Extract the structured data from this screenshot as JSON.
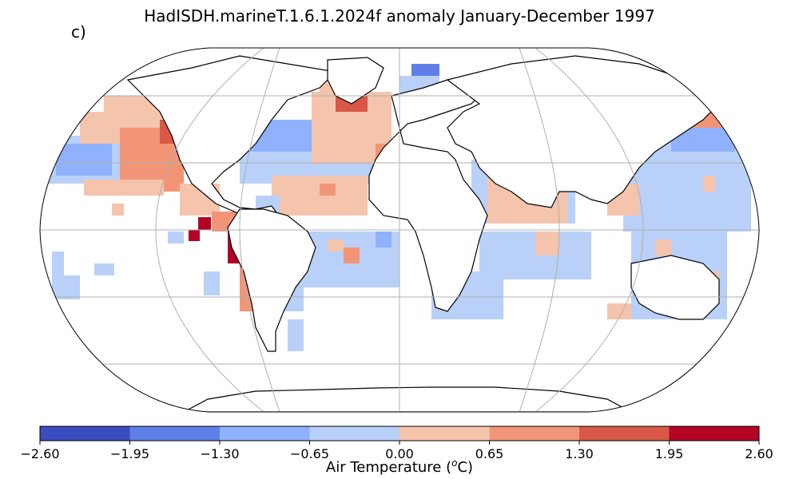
{
  "title": "HadISDH.marineT.1.6.1.2024f anomaly January-December 1997",
  "panel_label": "c)",
  "colorbar": {
    "label_text": "Air Temperature (",
    "label_sup": "o",
    "label_unit": "C)",
    "ticks": [
      "−2.60",
      "−1.95",
      "−1.30",
      "−0.65",
      "0.00",
      "0.65",
      "1.30",
      "1.95",
      "2.60"
    ],
    "bins": [
      {
        "range": [
          -2.6,
          -1.95
        ],
        "color": "#3b4cc0"
      },
      {
        "range": [
          -1.95,
          -1.3
        ],
        "color": "#5f7fe8"
      },
      {
        "range": [
          -1.3,
          -0.65
        ],
        "color": "#8fb1fe"
      },
      {
        "range": [
          -0.65,
          0.0
        ],
        "color": "#b9d0f9"
      },
      {
        "range": [
          0.0,
          0.65
        ],
        "color": "#f5c4ad"
      },
      {
        "range": [
          0.65,
          1.3
        ],
        "color": "#f29576"
      },
      {
        "range": [
          1.3,
          1.95
        ],
        "color": "#d95847"
      },
      {
        "range": [
          1.95,
          2.6
        ],
        "color": "#b40426"
      }
    ]
  },
  "map": {
    "projection": "Robinson",
    "gridlines": true,
    "grid_color": "#b0b0b0",
    "coastline_color": "#000000"
  }
}
